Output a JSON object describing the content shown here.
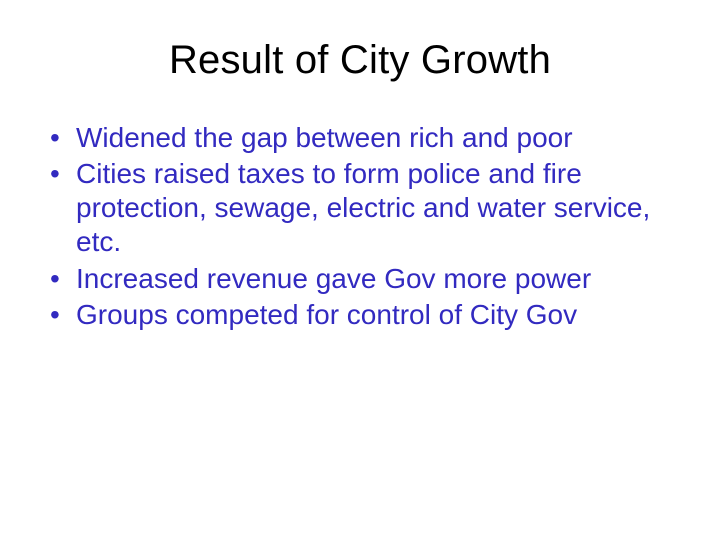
{
  "slide": {
    "title": "Result of City Growth",
    "title_color": "#000000",
    "title_fontsize": 40,
    "bullet_color": "#322ac0",
    "bullet_fontsize": 28,
    "background_color": "#ffffff",
    "bullets": [
      "Widened the gap between rich and poor",
      "Cities raised taxes to form police and fire protection, sewage, electric and water service, etc.",
      "Increased revenue gave Gov more power",
      "Groups competed for control of City Gov"
    ]
  }
}
